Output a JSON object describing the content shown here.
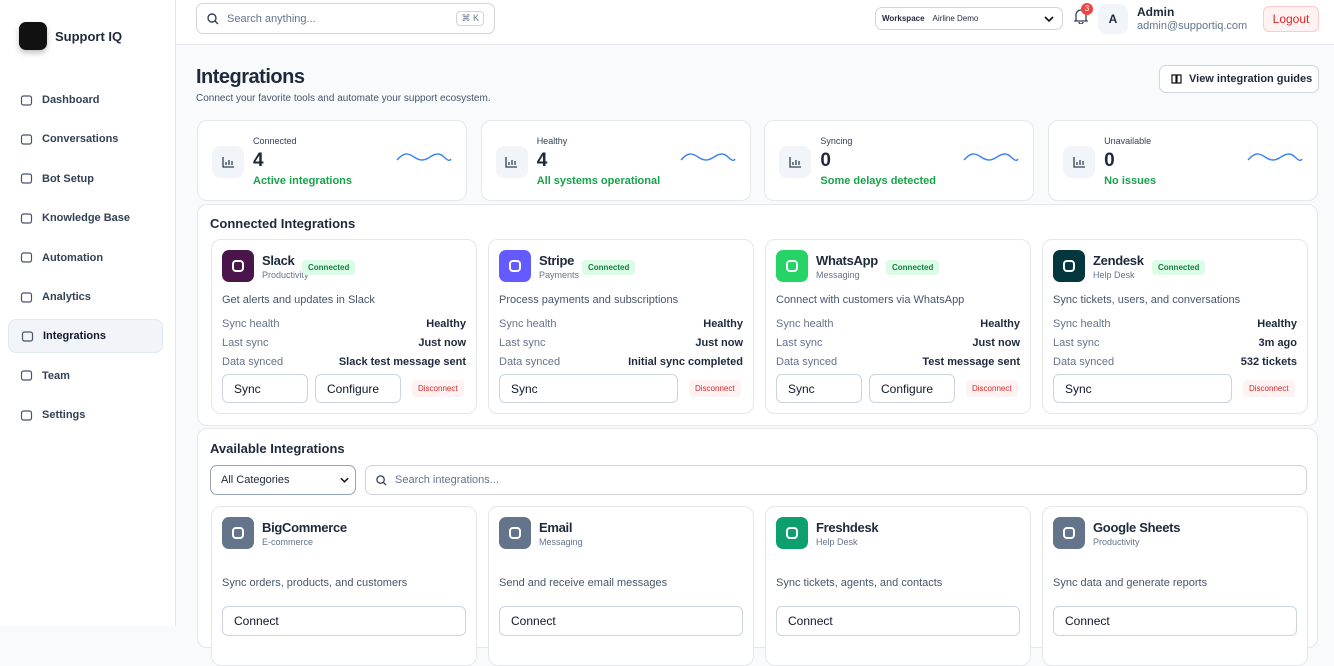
{
  "brand": "Support IQ",
  "nav": [
    {
      "label": "Dashboard"
    },
    {
      "label": "Conversations"
    },
    {
      "label": "Bot Setup"
    },
    {
      "label": "Knowledge Base"
    },
    {
      "label": "Automation"
    },
    {
      "label": "Analytics"
    },
    {
      "label": "Integrations",
      "active": true
    },
    {
      "label": "Team"
    },
    {
      "label": "Settings"
    }
  ],
  "topbar": {
    "search_placeholder": "Search anything...",
    "shortcut": [
      "⌘",
      "K"
    ],
    "workspace_label": "Workspace",
    "workspace": "Airline Demo",
    "notifications": 3,
    "avatar": "A",
    "user_name": "Admin",
    "user_email": "admin@supportiq.com",
    "logout": "Logout"
  },
  "header": {
    "title": "Integrations",
    "subtitle": "Connect your favorite tools and automate your support ecosystem.",
    "guides_button": "View integration guides"
  },
  "stats": [
    {
      "label": "Connected",
      "value": 4,
      "note": "Active integrations"
    },
    {
      "label": "Healthy",
      "value": 4,
      "note": "All systems operational"
    },
    {
      "label": "Syncing",
      "value": 0,
      "note": "Some delays detected"
    },
    {
      "label": "Unavailable",
      "value": 0,
      "note": "No issues"
    }
  ],
  "connected": {
    "title": "Connected Integrations",
    "cards": [
      {
        "name": "Slack",
        "category": "Productivity",
        "status": "Connected",
        "color": "#4a154b",
        "description": "Get alerts and updates in Slack",
        "rows": [
          [
            "Sync health",
            "Healthy"
          ],
          [
            "Last sync",
            "Just now"
          ],
          [
            "Data synced",
            "Slack test message sent"
          ]
        ],
        "buttons": [
          "Sync",
          "Configure",
          "Disconnect"
        ]
      },
      {
        "name": "Stripe",
        "category": "Payments",
        "status": "Connected",
        "color": "#635bff",
        "description": "Process payments and subscriptions",
        "rows": [
          [
            "Sync health",
            "Healthy"
          ],
          [
            "Last sync",
            "Just now"
          ],
          [
            "Data synced",
            "Initial sync completed"
          ]
        ],
        "buttons": [
          "Sync",
          "Disconnect"
        ]
      },
      {
        "name": "WhatsApp",
        "category": "Messaging",
        "status": "Connected",
        "color": "#25d366",
        "description": "Connect with customers via WhatsApp",
        "rows": [
          [
            "Sync health",
            "Healthy"
          ],
          [
            "Last sync",
            "Just now"
          ],
          [
            "Data synced",
            "Test message sent"
          ]
        ],
        "buttons": [
          "Sync",
          "Configure",
          "Disconnect"
        ]
      },
      {
        "name": "Zendesk",
        "category": "Help Desk",
        "status": "Connected",
        "color": "#03363d",
        "description": "Sync tickets, users, and conversations",
        "rows": [
          [
            "Sync health",
            "Healthy"
          ],
          [
            "Last sync",
            "3m ago"
          ],
          [
            "Data synced",
            "532 tickets"
          ]
        ],
        "buttons": [
          "Sync",
          "Disconnect"
        ]
      }
    ]
  },
  "available": {
    "title": "Available Integrations",
    "filter": "All Categories",
    "search_placeholder": "Search integrations...",
    "cards": [
      {
        "name": "BigCommerce",
        "category": "E-commerce",
        "color": "#64748b",
        "description": "Sync orders, products, and customers",
        "button": "Connect"
      },
      {
        "name": "Email",
        "category": "Messaging",
        "color": "#64748b",
        "description": "Send and receive email messages",
        "button": "Connect"
      },
      {
        "name": "Freshdesk",
        "category": "Help Desk",
        "color": "#0e9f6e",
        "description": "Sync tickets, agents, and contacts",
        "button": "Connect"
      },
      {
        "name": "Google Sheets",
        "category": "Productivity",
        "color": "#64748b",
        "description": "Sync data and generate reports",
        "button": "Connect"
      }
    ]
  }
}
